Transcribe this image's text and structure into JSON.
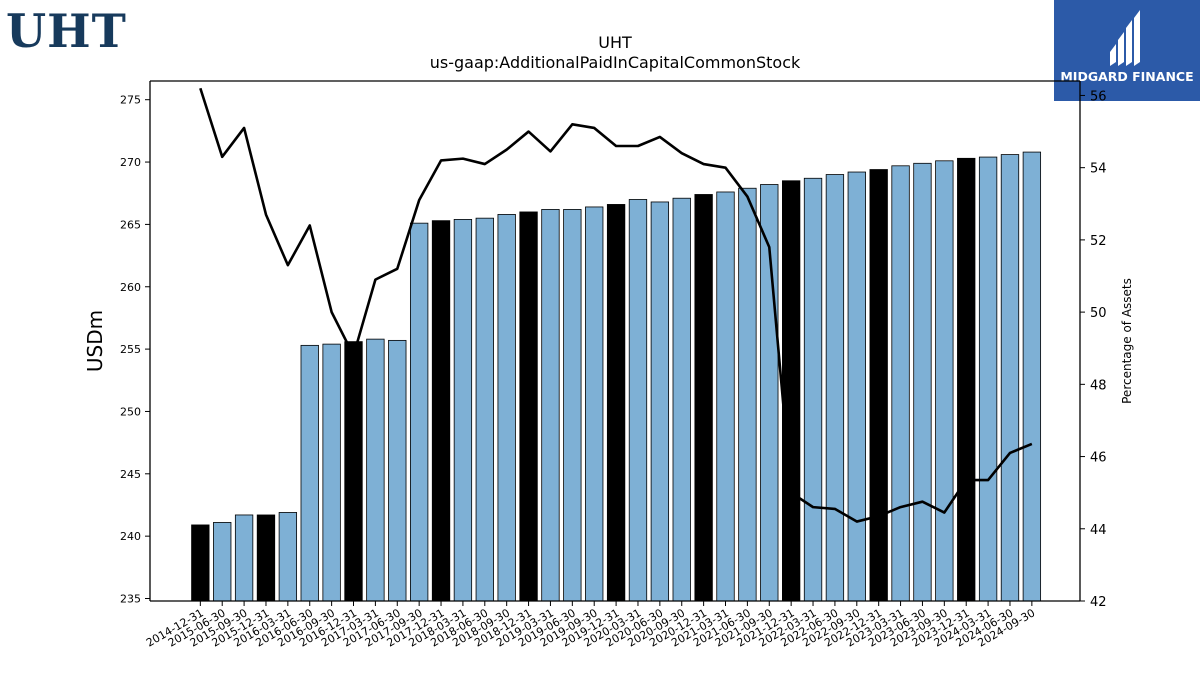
{
  "header": {
    "ticker_logo": "UHT",
    "brand_name": "MIDGARD FINANCE",
    "brand_color": "#2c5aa8"
  },
  "chart_data": {
    "type": "bar",
    "title": "UHT",
    "subtitle": "us-gaap:AdditionalPaidInCapitalCommonStock",
    "ylabel": "USDm",
    "y2label": "Percentage of Assets",
    "ylim": [
      234.8,
      276.5
    ],
    "y2lim": [
      42,
      56.4
    ],
    "yticks": [
      235,
      240,
      245,
      250,
      255,
      260,
      265,
      270,
      275
    ],
    "y2ticks": [
      42,
      44,
      46,
      48,
      50,
      52,
      54,
      56
    ],
    "grid": false,
    "bar_color": "#7eb0d5",
    "highlight_color": "#000000",
    "categories": [
      "2014-12-31",
      "2015-06-30",
      "2015-09-30",
      "2015-12-31",
      "2016-03-31",
      "2016-06-30",
      "2016-09-30",
      "2016-12-31",
      "2017-03-31",
      "2017-06-30",
      "2017-09-30",
      "2017-12-31",
      "2018-03-31",
      "2018-06-30",
      "2018-09-30",
      "2018-12-31",
      "2019-03-31",
      "2019-06-30",
      "2019-09-30",
      "2019-12-31",
      "2020-03-31",
      "2020-06-30",
      "2020-09-30",
      "2020-12-31",
      "2021-03-31",
      "2021-06-30",
      "2021-09-30",
      "2021-12-31",
      "2022-03-31",
      "2022-06-30",
      "2022-09-30",
      "2022-12-31",
      "2023-03-31",
      "2023-06-30",
      "2023-09-30",
      "2023-12-31",
      "2024-03-31",
      "2024-06-30",
      "2024-09-30"
    ],
    "values": [
      240.9,
      241.1,
      241.7,
      241.7,
      241.9,
      255.3,
      255.4,
      255.6,
      255.8,
      255.7,
      265.1,
      265.3,
      265.4,
      265.5,
      265.8,
      266.0,
      266.2,
      266.2,
      266.4,
      266.6,
      267.0,
      266.8,
      267.1,
      267.4,
      267.6,
      267.9,
      268.2,
      268.5,
      268.7,
      269.0,
      269.2,
      269.4,
      269.7,
      269.9,
      270.1,
      270.3,
      270.4,
      270.6,
      270.8
    ],
    "highlight": [
      true,
      false,
      false,
      true,
      false,
      false,
      false,
      true,
      false,
      false,
      false,
      true,
      false,
      false,
      false,
      true,
      false,
      false,
      false,
      true,
      false,
      false,
      false,
      true,
      false,
      false,
      false,
      true,
      false,
      false,
      false,
      true,
      false,
      false,
      false,
      true,
      false,
      false,
      false
    ],
    "series": [
      {
        "type": "line",
        "axis": "right",
        "color": "#000000",
        "values": [
          56.2,
          54.3,
          55.1,
          52.7,
          51.3,
          52.4,
          50.0,
          48.8,
          50.9,
          51.2,
          53.1,
          54.2,
          54.25,
          54.1,
          54.5,
          55.0,
          54.45,
          55.2,
          55.1,
          54.6,
          54.6,
          54.85,
          54.4,
          54.1,
          54.0,
          53.2,
          51.8,
          45.0,
          44.6,
          44.55,
          44.2,
          44.35,
          44.6,
          44.75,
          44.45,
          45.35,
          45.35,
          46.1,
          46.35
        ]
      }
    ]
  }
}
